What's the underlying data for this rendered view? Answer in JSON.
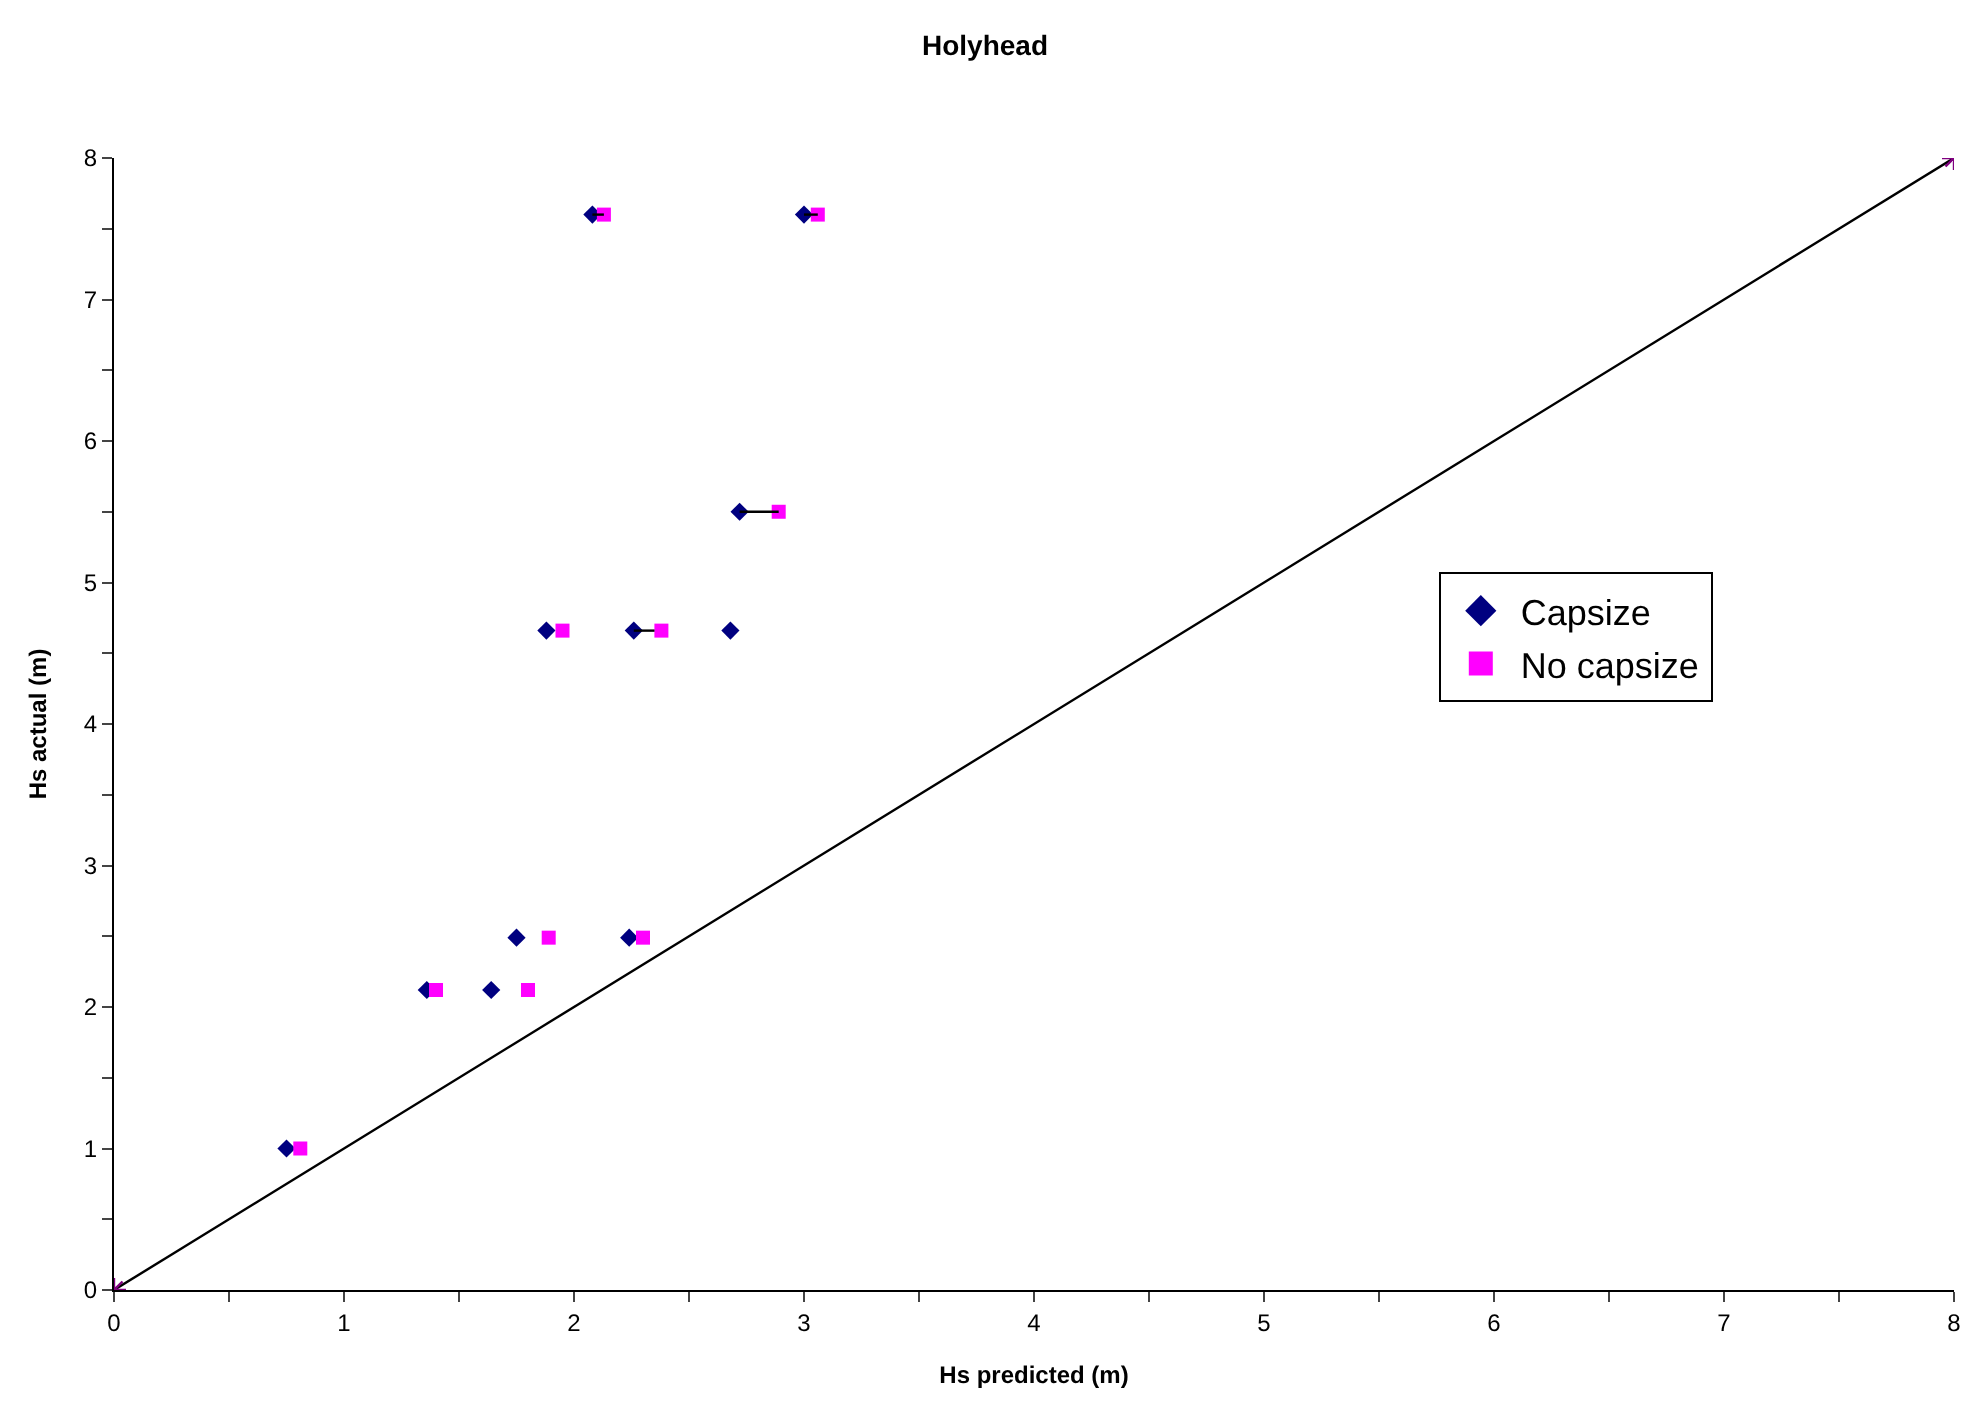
{
  "chart_data": {
    "type": "scatter",
    "title": "Holyhead",
    "xlabel": "Hs predicted (m)",
    "ylabel": "Hs actual (m)",
    "series": [
      {
        "name": "Capsize",
        "color": "#000080",
        "marker": "diamond",
        "x": [
          0.75,
          1.36,
          1.64,
          1.75,
          2.24,
          1.88,
          2.26,
          2.68,
          2.72,
          2.08,
          3.0
        ],
        "values": [
          1.0,
          2.12,
          2.12,
          2.49,
          2.49,
          4.66,
          4.66,
          4.66,
          5.5,
          7.6,
          7.6
        ]
      },
      {
        "name": "No capsize",
        "color": "#ff00ff",
        "marker": "square",
        "x": [
          0.81,
          1.4,
          1.8,
          1.89,
          2.3,
          1.95,
          2.38,
          2.89,
          2.13,
          3.06
        ],
        "values": [
          1.0,
          2.12,
          2.12,
          2.49,
          2.49,
          4.66,
          4.66,
          5.5,
          7.6,
          7.6
        ]
      },
      {
        "type": "line",
        "color": "#000000",
        "marker": "none",
        "x": [
          2.72,
          2.89
        ],
        "values": [
          5.5,
          5.5
        ]
      },
      {
        "type": "line",
        "color": "#000000",
        "marker": "none",
        "x": [
          2.26,
          2.35
        ],
        "values": [
          4.66,
          4.66
        ]
      },
      {
        "type": "line",
        "color": "#000000",
        "marker": "none",
        "x": [
          2.08,
          2.13
        ],
        "values": [
          7.6,
          7.6
        ]
      },
      {
        "type": "line",
        "color": "#000000",
        "marker": "none",
        "x": [
          3.0,
          3.06
        ],
        "values": [
          7.6,
          7.6
        ]
      },
      {
        "type": "line",
        "color": "#000000",
        "marker": "cross",
        "x": [
          0,
          8
        ],
        "values": [
          0,
          8
        ]
      }
    ],
    "xlim": [
      0,
      8
    ],
    "ylim": [
      0,
      8
    ],
    "xticks": [
      0,
      {
        "value": 0.5,
        "label": null
      },
      1,
      {
        "value": 1.5,
        "label": null
      },
      2,
      {
        "value": 2.5,
        "label": null
      },
      3,
      {
        "value": 3.5,
        "label": null
      },
      4,
      {
        "value": 4.5,
        "label": null
      },
      5,
      {
        "value": 5.5,
        "label": null
      },
      6,
      {
        "value": 6.5,
        "label": null
      },
      7,
      {
        "value": 7.5,
        "label": null
      },
      8
    ],
    "yticks": [
      0,
      {
        "value": 0.5,
        "label": null
      },
      1,
      {
        "value": 1.5,
        "label": null
      },
      2,
      {
        "value": 2.5,
        "label": null
      },
      3,
      {
        "value": 3.5,
        "label": null
      },
      4,
      {
        "value": 4.5,
        "label": null
      },
      5,
      {
        "value": 5.5,
        "label": null
      },
      6,
      {
        "value": 6.5,
        "label": null
      },
      7,
      {
        "value": 7.5,
        "label": null
      },
      8
    ],
    "legend": "right"
  }
}
